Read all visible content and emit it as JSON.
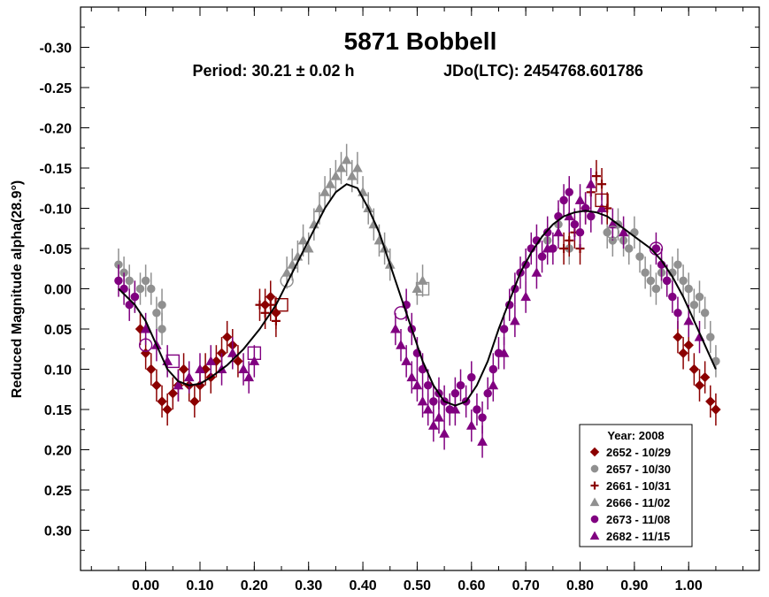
{
  "chart_data": {
    "type": "scatter",
    "title": "5871 Bobbell",
    "subtitle_left": "Period: 30.21 ± 0.02 h",
    "subtitle_right": "JDo(LTC): 2454768.601786",
    "ylabel": "Reduced Magnitude alpha(28.9°)",
    "xlim": [
      -0.12,
      1.13
    ],
    "ylim": [
      -0.35,
      0.35
    ],
    "y_inverted": true,
    "x_ticks": [
      "0.00",
      "0.10",
      "0.20",
      "0.30",
      "0.40",
      "0.50",
      "0.60",
      "0.70",
      "0.80",
      "0.90",
      "1.00"
    ],
    "y_ticks": [
      "-0.30",
      "-0.25",
      "-0.20",
      "-0.15",
      "-0.10",
      "-0.05",
      "0.00",
      "0.05",
      "0.10",
      "0.15",
      "0.20",
      "0.25",
      "0.30"
    ],
    "legend_title": "Year: 2008",
    "legend_position": "bottom-right",
    "series": [
      {
        "name": "2652 - 10/29",
        "marker": "diamond",
        "color": "#8B0000",
        "points": [
          [
            -0.01,
            0.05
          ],
          [
            0.0,
            0.08
          ],
          [
            0.01,
            0.1
          ],
          [
            0.02,
            0.12
          ],
          [
            0.03,
            0.14
          ],
          [
            0.04,
            0.15
          ],
          [
            0.05,
            0.13
          ],
          [
            0.06,
            0.12
          ],
          [
            0.07,
            0.1
          ],
          [
            0.08,
            0.12
          ],
          [
            0.09,
            0.14
          ],
          [
            0.1,
            0.12
          ],
          [
            0.11,
            0.1
          ],
          [
            0.12,
            0.11
          ],
          [
            0.13,
            0.09
          ],
          [
            0.14,
            0.08
          ],
          [
            0.15,
            0.06
          ],
          [
            0.16,
            0.07
          ],
          [
            0.17,
            0.09
          ],
          [
            0.22,
            0.02
          ],
          [
            0.23,
            0.01
          ],
          [
            0.24,
            0.03
          ],
          [
            0.98,
            0.06
          ],
          [
            0.99,
            0.08
          ],
          [
            1.0,
            0.07
          ],
          [
            1.01,
            0.1
          ],
          [
            1.02,
            0.12
          ],
          [
            1.03,
            0.11
          ],
          [
            1.04,
            0.14
          ],
          [
            1.05,
            0.15
          ]
        ]
      },
      {
        "name": "2657 - 10/30",
        "marker": "circle",
        "color": "#909090",
        "points": [
          [
            -0.05,
            -0.03
          ],
          [
            -0.04,
            -0.02
          ],
          [
            -0.03,
            -0.01
          ],
          [
            -0.02,
            0.01
          ],
          [
            -0.01,
            0.0
          ],
          [
            0.0,
            -0.01
          ],
          [
            0.01,
            0.0
          ],
          [
            0.02,
            0.03
          ],
          [
            0.03,
            0.02
          ],
          [
            0.03,
            0.05
          ],
          [
            0.74,
            -0.06
          ],
          [
            0.76,
            -0.08
          ],
          [
            0.78,
            -0.05
          ],
          [
            0.85,
            -0.07
          ],
          [
            0.86,
            -0.06
          ],
          [
            0.87,
            -0.08
          ],
          [
            0.88,
            -0.06
          ],
          [
            0.89,
            -0.05
          ],
          [
            0.9,
            -0.07
          ],
          [
            0.91,
            -0.04
          ],
          [
            0.92,
            -0.02
          ],
          [
            0.93,
            -0.01
          ],
          [
            0.94,
            0.0
          ],
          [
            0.95,
            -0.02
          ],
          [
            0.96,
            -0.01
          ],
          [
            0.97,
            -0.02
          ],
          [
            0.98,
            -0.03
          ],
          [
            0.99,
            -0.01
          ],
          [
            1.0,
            0.0
          ],
          [
            1.01,
            0.02
          ],
          [
            1.02,
            0.01
          ],
          [
            1.03,
            0.03
          ],
          [
            1.04,
            0.06
          ],
          [
            1.05,
            0.09
          ]
        ]
      },
      {
        "name": "2661 - 10/31",
        "marker": "plus",
        "color": "#8B0000",
        "points": [
          [
            0.21,
            0.02
          ],
          [
            0.22,
            0.03
          ],
          [
            0.23,
            0.02
          ],
          [
            0.24,
            0.04
          ],
          [
            0.77,
            -0.05
          ],
          [
            0.78,
            -0.06
          ],
          [
            0.79,
            -0.07
          ],
          [
            0.8,
            -0.05
          ],
          [
            0.81,
            -0.1
          ],
          [
            0.82,
            -0.12
          ],
          [
            0.83,
            -0.14
          ],
          [
            0.84,
            -0.13
          ],
          [
            0.85,
            -0.1
          ]
        ]
      },
      {
        "name": "2666 - 11/02",
        "marker": "triangle",
        "color": "#909090",
        "points": [
          [
            0.26,
            -0.02
          ],
          [
            0.27,
            -0.03
          ],
          [
            0.28,
            -0.04
          ],
          [
            0.29,
            -0.06
          ],
          [
            0.3,
            -0.05
          ],
          [
            0.31,
            -0.08
          ],
          [
            0.32,
            -0.1
          ],
          [
            0.33,
            -0.12
          ],
          [
            0.34,
            -0.13
          ],
          [
            0.35,
            -0.14
          ],
          [
            0.36,
            -0.15
          ],
          [
            0.37,
            -0.16
          ],
          [
            0.38,
            -0.14
          ],
          [
            0.39,
            -0.15
          ],
          [
            0.4,
            -0.12
          ],
          [
            0.41,
            -0.1
          ],
          [
            0.42,
            -0.08
          ],
          [
            0.43,
            -0.06
          ],
          [
            0.44,
            -0.05
          ],
          [
            0.45,
            -0.03
          ],
          [
            0.5,
            0.0
          ],
          [
            0.51,
            -0.01
          ]
        ]
      },
      {
        "name": "2673 - 11/08",
        "marker": "circle",
        "color": "#800080",
        "points": [
          [
            -0.05,
            -0.01
          ],
          [
            -0.04,
            0.0
          ],
          [
            -0.03,
            0.02
          ],
          [
            -0.02,
            0.01
          ],
          [
            0.48,
            0.02
          ],
          [
            0.49,
            0.05
          ],
          [
            0.5,
            0.08
          ],
          [
            0.51,
            0.1
          ],
          [
            0.52,
            0.12
          ],
          [
            0.53,
            0.14
          ],
          [
            0.54,
            0.13
          ],
          [
            0.55,
            0.14
          ],
          [
            0.56,
            0.15
          ],
          [
            0.57,
            0.13
          ],
          [
            0.58,
            0.12
          ],
          [
            0.59,
            0.14
          ],
          [
            0.6,
            0.11
          ],
          [
            0.61,
            0.15
          ],
          [
            0.62,
            0.16
          ],
          [
            0.63,
            0.13
          ],
          [
            0.64,
            0.1
          ],
          [
            0.65,
            0.08
          ],
          [
            0.66,
            0.05
          ],
          [
            0.67,
            0.02
          ],
          [
            0.68,
            0.0
          ],
          [
            0.69,
            -0.02
          ],
          [
            0.7,
            -0.03
          ],
          [
            0.71,
            -0.05
          ],
          [
            0.72,
            -0.06
          ],
          [
            0.73,
            -0.04
          ],
          [
            0.74,
            -0.07
          ],
          [
            0.75,
            -0.05
          ],
          [
            0.76,
            -0.09
          ],
          [
            0.77,
            -0.11
          ],
          [
            0.78,
            -0.12
          ],
          [
            0.79,
            -0.08
          ],
          [
            0.8,
            -0.07
          ],
          [
            0.81,
            -0.1
          ],
          [
            0.82,
            -0.09
          ],
          [
            0.94,
            -0.05
          ],
          [
            0.95,
            -0.03
          ],
          [
            0.96,
            -0.01
          ],
          [
            0.97,
            0.01
          ],
          [
            0.98,
            0.03
          ]
        ]
      },
      {
        "name": "2682 - 11/15",
        "marker": "triangle",
        "color": "#800080",
        "points": [
          [
            0.0,
            0.05
          ],
          [
            0.02,
            0.07
          ],
          [
            0.04,
            0.09
          ],
          [
            0.06,
            0.12
          ],
          [
            0.08,
            0.11
          ],
          [
            0.1,
            0.1
          ],
          [
            0.12,
            0.09
          ],
          [
            0.14,
            0.1
          ],
          [
            0.16,
            0.08
          ],
          [
            0.18,
            0.1
          ],
          [
            0.19,
            0.11
          ],
          [
            0.2,
            0.09
          ],
          [
            0.46,
            0.05
          ],
          [
            0.47,
            0.07
          ],
          [
            0.48,
            0.09
          ],
          [
            0.49,
            0.11
          ],
          [
            0.5,
            0.12
          ],
          [
            0.51,
            0.14
          ],
          [
            0.52,
            0.15
          ],
          [
            0.53,
            0.17
          ],
          [
            0.54,
            0.16
          ],
          [
            0.55,
            0.18
          ],
          [
            0.57,
            0.15
          ],
          [
            0.6,
            0.17
          ],
          [
            0.62,
            0.19
          ],
          [
            0.64,
            0.12
          ],
          [
            0.66,
            0.08
          ],
          [
            0.68,
            0.04
          ],
          [
            0.7,
            0.01
          ],
          [
            0.72,
            -0.02
          ],
          [
            0.74,
            -0.05
          ],
          [
            0.76,
            -0.07
          ],
          [
            0.78,
            -0.09
          ],
          [
            0.8,
            -0.11
          ],
          [
            0.82,
            -0.13
          ],
          [
            0.84,
            -0.1
          ],
          [
            0.86,
            -0.08
          ],
          [
            0.88,
            -0.07
          ],
          [
            1.0,
            0.04
          ],
          [
            1.02,
            0.06
          ]
        ]
      }
    ],
    "fit_curve": {
      "x": [
        -0.05,
        -0.02,
        0.0,
        0.02,
        0.04,
        0.06,
        0.08,
        0.1,
        0.12,
        0.15,
        0.18,
        0.21,
        0.24,
        0.27,
        0.3,
        0.33,
        0.35,
        0.37,
        0.39,
        0.41,
        0.43,
        0.45,
        0.47,
        0.49,
        0.51,
        0.53,
        0.55,
        0.57,
        0.59,
        0.61,
        0.63,
        0.65,
        0.67,
        0.69,
        0.71,
        0.73,
        0.75,
        0.77,
        0.79,
        0.81,
        0.83,
        0.85,
        0.87,
        0.89,
        0.91,
        0.93,
        0.95,
        0.97,
        0.99,
        1.01,
        1.03,
        1.05
      ],
      "y": [
        0.0,
        0.02,
        0.04,
        0.07,
        0.1,
        0.115,
        0.12,
        0.118,
        0.11,
        0.095,
        0.075,
        0.05,
        0.02,
        -0.02,
        -0.06,
        -0.1,
        -0.12,
        -0.13,
        -0.125,
        -0.1,
        -0.07,
        -0.03,
        0.01,
        0.05,
        0.09,
        0.12,
        0.14,
        0.145,
        0.14,
        0.12,
        0.09,
        0.05,
        0.015,
        -0.02,
        -0.045,
        -0.065,
        -0.08,
        -0.09,
        -0.095,
        -0.097,
        -0.095,
        -0.09,
        -0.08,
        -0.07,
        -0.06,
        -0.05,
        -0.035,
        -0.015,
        0.01,
        0.04,
        0.07,
        0.1
      ]
    },
    "open_markers": [
      {
        "x": 0.0,
        "y": 0.07,
        "shape": "circle",
        "color": "#800080"
      },
      {
        "x": 0.05,
        "y": 0.09,
        "shape": "square",
        "color": "#800080"
      },
      {
        "x": 0.2,
        "y": 0.08,
        "shape": "square",
        "color": "#800080"
      },
      {
        "x": 0.25,
        "y": 0.02,
        "shape": "square",
        "color": "#8B0000"
      },
      {
        "x": 0.26,
        "y": -0.01,
        "shape": "circle",
        "color": "#909090"
      },
      {
        "x": 0.47,
        "y": 0.03,
        "shape": "circle",
        "color": "#800080"
      },
      {
        "x": 0.51,
        "y": 0.0,
        "shape": "square",
        "color": "#909090"
      },
      {
        "x": 0.84,
        "y": -0.11,
        "shape": "square",
        "color": "#8B0000"
      },
      {
        "x": 0.86,
        "y": -0.07,
        "shape": "circle",
        "color": "#909090"
      },
      {
        "x": 0.94,
        "y": -0.05,
        "shape": "circle",
        "color": "#800080"
      }
    ]
  }
}
